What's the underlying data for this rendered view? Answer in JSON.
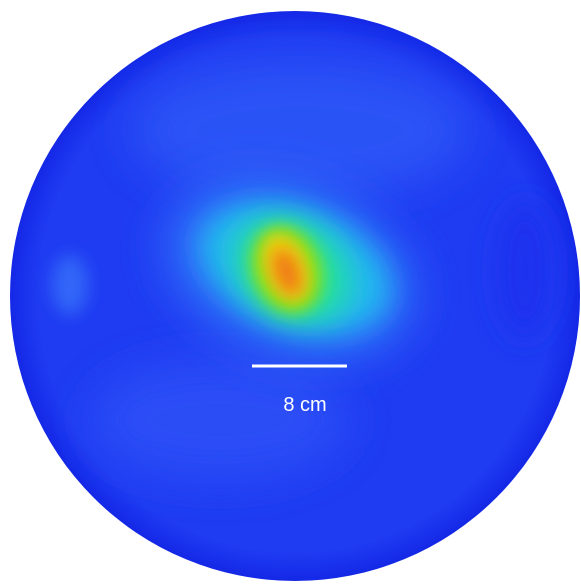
{
  "scale_bar": {
    "label": "8 cm"
  }
}
